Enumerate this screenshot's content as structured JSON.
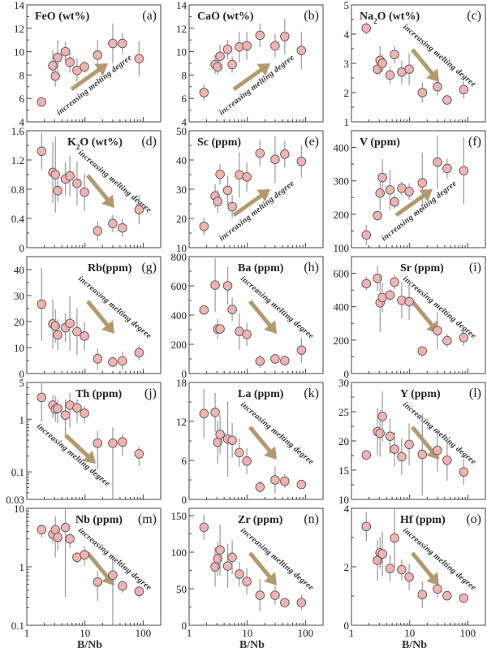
{
  "chart_data": {
    "type": "scatter",
    "layout": "5 rows x 3 columns grid of panels",
    "shared_x": {
      "label": "B/Nb",
      "scale": "log",
      "xlim": [
        1,
        200
      ],
      "tick_labels": [
        "1",
        "10",
        "100"
      ],
      "values": [
        1.8,
        2.8,
        3.1,
        3.4,
        4.6,
        5.5,
        7.3,
        9.8,
        16.5,
        30,
        44,
        85
      ]
    },
    "marker_color": "#f4b3b3",
    "marker_edge": "#555555",
    "errorbar_color": "#999999",
    "arrow_color": "#b29a6e",
    "arrow_text": "increasing melting degree",
    "panels": [
      {
        "id": "a",
        "title": "FeO (wt%)",
        "tag": "(a)",
        "scale": "linear",
        "ylim": [
          4,
          14
        ],
        "yticks": [
          "4",
          "6",
          "8",
          "10",
          "12",
          "14"
        ],
        "trend": "up",
        "y": [
          5.7,
          8.8,
          7.9,
          9.5,
          10.0,
          9.1,
          8.4,
          8.7,
          9.7,
          10.7,
          10.7,
          9.4
        ],
        "err": [
          0.4,
          1.3,
          0.9,
          1.5,
          0.8,
          0.9,
          1.0,
          0.5,
          1.3,
          1.7,
          0.9,
          1.5
        ]
      },
      {
        "id": "b",
        "title": "CaO (wt%)",
        "tag": "(b)",
        "scale": "linear",
        "ylim": [
          4,
          14
        ],
        "yticks": [
          "4",
          "6",
          "8",
          "10",
          "12",
          "14"
        ],
        "trend": "up",
        "y": [
          6.5,
          8.9,
          8.7,
          9.6,
          10.2,
          8.9,
          10.4,
          10.5,
          11.4,
          10.5,
          11.3,
          10.1
        ],
        "err": [
          0.7,
          0.8,
          0.7,
          1.0,
          0.8,
          0.7,
          1.3,
          1.2,
          1.0,
          1.0,
          1.5,
          1.6
        ]
      },
      {
        "id": "c",
        "title": "Na2O (wt%)",
        "title_html": "Na<tspan baseline-shift='sub' font-size='9'>2</tspan>O (wt%)",
        "tag": "(c)",
        "scale": "linear",
        "ylim": [
          1,
          5
        ],
        "yticks": [
          "1",
          "2",
          "3",
          "4",
          "5"
        ],
        "trend": "down",
        "y": [
          4.2,
          2.8,
          3.1,
          3.0,
          2.6,
          3.3,
          2.7,
          2.8,
          2.0,
          2.2,
          1.75,
          2.1
        ],
        "err": [
          0.2,
          0.2,
          0.5,
          0.3,
          0.3,
          0.3,
          0.4,
          0.55,
          0.35,
          0.3,
          0.1,
          0.3
        ]
      },
      {
        "id": "d",
        "title": "K2O (wt%)",
        "tag": "(d)",
        "scale": "linear",
        "ylim": [
          0,
          1.6
        ],
        "yticks": [
          "0",
          "0.4",
          "0.8",
          "1.2",
          "1.6"
        ],
        "trend": "down",
        "y": [
          1.32,
          1.03,
          1.0,
          0.78,
          0.94,
          0.98,
          0.88,
          0.76,
          0.23,
          0.33,
          0.27,
          0.52
        ],
        "err": [
          0.25,
          0.42,
          0.52,
          0.15,
          0.23,
          0.28,
          0.3,
          0.25,
          0.13,
          0.12,
          0.12,
          0.2
        ]
      },
      {
        "id": "e",
        "title": "Sc (ppm)",
        "tag": "(e)",
        "scale": "linear",
        "ylim": [
          10,
          50
        ],
        "yticks": [
          "10",
          "20",
          "30",
          "40",
          "50"
        ],
        "trend": "up",
        "y": [
          17.3,
          27.7,
          25.8,
          35.1,
          29.6,
          24.0,
          34.9,
          34.2,
          42.3,
          40.2,
          42.0,
          39.5
        ],
        "err": [
          3,
          4,
          4,
          3.5,
          5,
          4,
          7.7,
          5,
          4.5,
          8,
          4.5,
          5.5
        ]
      },
      {
        "id": "f",
        "title": "V (ppm)",
        "tag": "(f)",
        "scale": "linear",
        "ylim": [
          100,
          450
        ],
        "yticks": [
          "100",
          "200",
          "300",
          "400"
        ],
        "trend": "up",
        "y": [
          138,
          196,
          263,
          310,
          273,
          237,
          278,
          268,
          294,
          356,
          337,
          330
        ],
        "err": [
          30,
          10,
          50,
          55,
          60,
          20,
          20,
          25,
          90,
          80,
          30,
          100
        ]
      },
      {
        "id": "g",
        "title": "Rb(ppm)",
        "tag": "(g)",
        "scale": "linear",
        "ylim": [
          0,
          45
        ],
        "yticks": [
          "0",
          "10",
          "20",
          "30",
          "40"
        ],
        "trend": "down",
        "y": [
          26.7,
          19.1,
          18.3,
          14.9,
          17.6,
          19.3,
          16.1,
          14.4,
          5.7,
          4.4,
          4.9,
          8.0
        ],
        "err": [
          14,
          9.5,
          6.5,
          6,
          5.5,
          10.5,
          9,
          5.5,
          4,
          2,
          3.5,
          3
        ]
      },
      {
        "id": "h",
        "title": "Ba (ppm)",
        "tag": "(h)",
        "scale": "linear",
        "ylim": [
          0,
          800
        ],
        "yticks": [
          "0",
          "200",
          "400",
          "600",
          "800"
        ],
        "trend": "down",
        "y": [
          435,
          605,
          305,
          305,
          600,
          438,
          288,
          268,
          84,
          100,
          88,
          160
        ],
        "err": [
          10,
          185,
          70,
          10,
          130,
          80,
          125,
          80,
          45,
          35,
          35,
          85
        ]
      },
      {
        "id": "i",
        "title": "Sr (ppm)",
        "tag": "(i)",
        "scale": "linear",
        "ylim": [
          0,
          700
        ],
        "yticks": [
          "0",
          "200",
          "400",
          "600"
        ],
        "trend": "down",
        "y": [
          538,
          570,
          424,
          455,
          470,
          548,
          438,
          430,
          135,
          257,
          197,
          215
        ],
        "err": [
          40,
          75,
          175,
          90,
          35,
          45,
          110,
          110,
          10,
          110,
          40,
          50
        ]
      },
      {
        "id": "j",
        "title": "Th (ppm)",
        "tag": "(j)",
        "scale": "log",
        "ylim": [
          0.03,
          5
        ],
        "yticks": [
          "0.03",
          "0.1",
          "1",
          "5"
        ],
        "trend": "down",
        "y": [
          2.6,
          1.85,
          1.55,
          1.6,
          1.2,
          1.85,
          1.65,
          1.3,
          0.35,
          0.35,
          0.37,
          0.22
        ],
        "err_lo": [
          0.9,
          1.05,
          0.9,
          0.85,
          0.5,
          0.7,
          0.85,
          0.85,
          0.11,
          0.03,
          0.2,
          0.13
        ],
        "err_hi": [
          4.8,
          2.9,
          2.8,
          2.4,
          2.4,
          3.2,
          2.4,
          1.8,
          0.6,
          0.7,
          0.52,
          0.3
        ]
      },
      {
        "id": "k",
        "title": "La (ppm)",
        "tag": "(k)",
        "scale": "linear",
        "ylim": [
          0,
          18
        ],
        "yticks": [
          "0",
          "6",
          "12",
          "18"
        ],
        "trend": "down",
        "y": [
          13.2,
          13.4,
          8.8,
          10.0,
          9.3,
          9.1,
          7.2,
          5.9,
          1.9,
          3.0,
          2.8,
          2.3
        ],
        "err": [
          3.8,
          3,
          3.3,
          3,
          5.8,
          2.7,
          2.2,
          2,
          0.9,
          2.1,
          1.1,
          0.4
        ]
      },
      {
        "id": "l",
        "title": "Y (ppm)",
        "tag": "(l)",
        "scale": "linear",
        "ylim": [
          10,
          30
        ],
        "yticks": [
          "10",
          "15",
          "20",
          "25",
          "30"
        ],
        "trend": "down",
        "y": [
          17.6,
          21.6,
          21.3,
          24.2,
          20.8,
          18.6,
          17.3,
          19.4,
          17.7,
          18.4,
          16.7,
          14.7
        ],
        "err": [
          0.2,
          4,
          4,
          4.3,
          3,
          3,
          3.1,
          3.6,
          7,
          3.6,
          3.5,
          2.2
        ]
      },
      {
        "id": "m",
        "title": "Nb (ppm)",
        "tag": "(m)",
        "scale": "log",
        "ylim": [
          0.1,
          10
        ],
        "yticks": [
          "0.1",
          "1",
          "10"
        ],
        "trend": "down",
        "y": [
          4.3,
          3.6,
          4.3,
          3.2,
          4.7,
          3.0,
          1.45,
          1.6,
          0.55,
          0.72,
          0.47,
          0.38
        ],
        "err_lo": [
          3.2,
          2.5,
          1.45,
          1.9,
          0.3,
          2.1,
          1.15,
          1.05,
          0.26,
          0.1,
          0.36,
          0.29
        ],
        "err_hi": [
          5.3,
          4.4,
          7.3,
          4.4,
          10,
          3.8,
          1.8,
          2.2,
          0.85,
          1.3,
          0.58,
          0.48
        ]
      },
      {
        "id": "n",
        "title": "Zr (ppm)",
        "tag": "(n)",
        "scale": "linear",
        "ylim": [
          0,
          160
        ],
        "yticks": [
          "0",
          "50",
          "100",
          "150"
        ],
        "trend": "down",
        "y": [
          134,
          80,
          91,
          103,
          81,
          93,
          70,
          60,
          41,
          41,
          31,
          31
        ],
        "err": [
          17,
          27,
          23,
          35,
          30,
          23,
          17,
          18,
          22,
          13,
          2,
          10
        ]
      },
      {
        "id": "o",
        "title": "Hf (ppm)",
        "tag": "(o)",
        "scale": "linear",
        "ylim": [
          0,
          4
        ],
        "yticks": [
          "0",
          "2",
          "4"
        ],
        "trend": "down",
        "y": [
          3.38,
          2.22,
          2.48,
          2.44,
          1.94,
          2.98,
          1.9,
          1.65,
          1.05,
          1.24,
          1.01,
          0.93
        ],
        "err": [
          0.5,
          0.7,
          0.55,
          0.75,
          0.45,
          1.0,
          0.35,
          0.45,
          0.45,
          0.3,
          0.05,
          0.1
        ]
      }
    ]
  }
}
